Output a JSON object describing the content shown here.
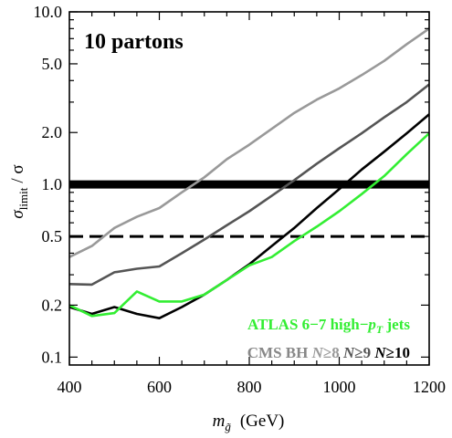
{
  "chart_data": {
    "type": "line",
    "annotation": "10 partons",
    "xlabel": {
      "base": "m",
      "sub": "g̃",
      "unit": "(GeV)"
    },
    "ylabel": {
      "main": "σ",
      "sub": "limit",
      "rest": "/ σ"
    },
    "xlim": [
      400,
      1200
    ],
    "ylim": [
      0.09,
      10.0
    ],
    "yscale": "log",
    "grid": false,
    "x_ticks": [
      400,
      600,
      800,
      1000,
      1200
    ],
    "x_tick_labels": [
      "400",
      "600",
      "800",
      "1000",
      "1200"
    ],
    "y_ticks": [
      0.1,
      0.2,
      0.5,
      1.0,
      2.0,
      5.0,
      10.0
    ],
    "y_tick_labels": [
      "0.1",
      "0.2",
      "0.5",
      "1.0",
      "2.0",
      "5.0",
      "10.0"
    ],
    "reference_lines": [
      {
        "y": 1.0,
        "style": "solid-thick",
        "color": "#000000"
      },
      {
        "y": 0.5,
        "style": "dashed",
        "color": "#000000"
      }
    ],
    "series": [
      {
        "name": "CMS BH N≥8",
        "color": "#999999",
        "x": [
          400,
          450,
          500,
          550,
          600,
          650,
          700,
          750,
          800,
          850,
          900,
          950,
          1000,
          1050,
          1100,
          1150,
          1200
        ],
        "y": [
          0.38,
          0.44,
          0.56,
          0.65,
          0.73,
          0.9,
          1.1,
          1.4,
          1.7,
          2.1,
          2.6,
          3.1,
          3.6,
          4.3,
          5.2,
          6.5,
          8.0
        ]
      },
      {
        "name": "N≥9",
        "color": "#555555",
        "x": [
          400,
          450,
          500,
          550,
          600,
          650,
          700,
          750,
          800,
          850,
          900,
          950,
          1000,
          1050,
          1100,
          1150,
          1200
        ],
        "y": [
          0.265,
          0.263,
          0.31,
          0.325,
          0.335,
          0.4,
          0.48,
          0.58,
          0.7,
          0.86,
          1.06,
          1.32,
          1.62,
          1.98,
          2.45,
          3.0,
          3.8
        ]
      },
      {
        "name": "N≥10",
        "color": "#000000",
        "x": [
          400,
          450,
          500,
          550,
          600,
          650,
          700,
          750,
          800,
          850,
          900,
          950,
          1000,
          1050,
          1100,
          1150,
          1200
        ],
        "y": [
          0.195,
          0.178,
          0.195,
          0.178,
          0.168,
          0.195,
          0.23,
          0.28,
          0.345,
          0.44,
          0.56,
          0.73,
          0.94,
          1.22,
          1.55,
          1.98,
          2.55
        ]
      },
      {
        "name": "ATLAS 6−7 high−pT jets",
        "color": "#33ee33",
        "x": [
          400,
          450,
          500,
          550,
          600,
          650,
          700,
          750,
          800,
          850,
          900,
          950,
          1000,
          1050,
          1100,
          1150,
          1200
        ],
        "y": [
          0.2,
          0.173,
          0.18,
          0.24,
          0.21,
          0.21,
          0.23,
          0.28,
          0.34,
          0.38,
          0.47,
          0.57,
          0.7,
          0.88,
          1.12,
          1.5,
          1.98
        ]
      }
    ],
    "legend": {
      "placement": "bottom-right",
      "atlas": {
        "pre": "ATLAS 6−7 high−",
        "var": "p",
        "sub": "T",
        "post": " jets",
        "color": "#33ee33"
      },
      "cms": [
        {
          "text": "CMS BH ",
          "color": "#888888",
          "style": "normal"
        },
        {
          "text": "N",
          "color": "#999999",
          "style": "italic"
        },
        {
          "text": "≥8 ",
          "color": "#999999",
          "style": "normal"
        },
        {
          "text": "N",
          "color": "#555555",
          "style": "italic"
        },
        {
          "text": "≥9 ",
          "color": "#555555",
          "style": "normal"
        },
        {
          "text": "N",
          "color": "#000000",
          "style": "italic"
        },
        {
          "text": "≥10",
          "color": "#000000",
          "style": "normal"
        }
      ]
    }
  }
}
